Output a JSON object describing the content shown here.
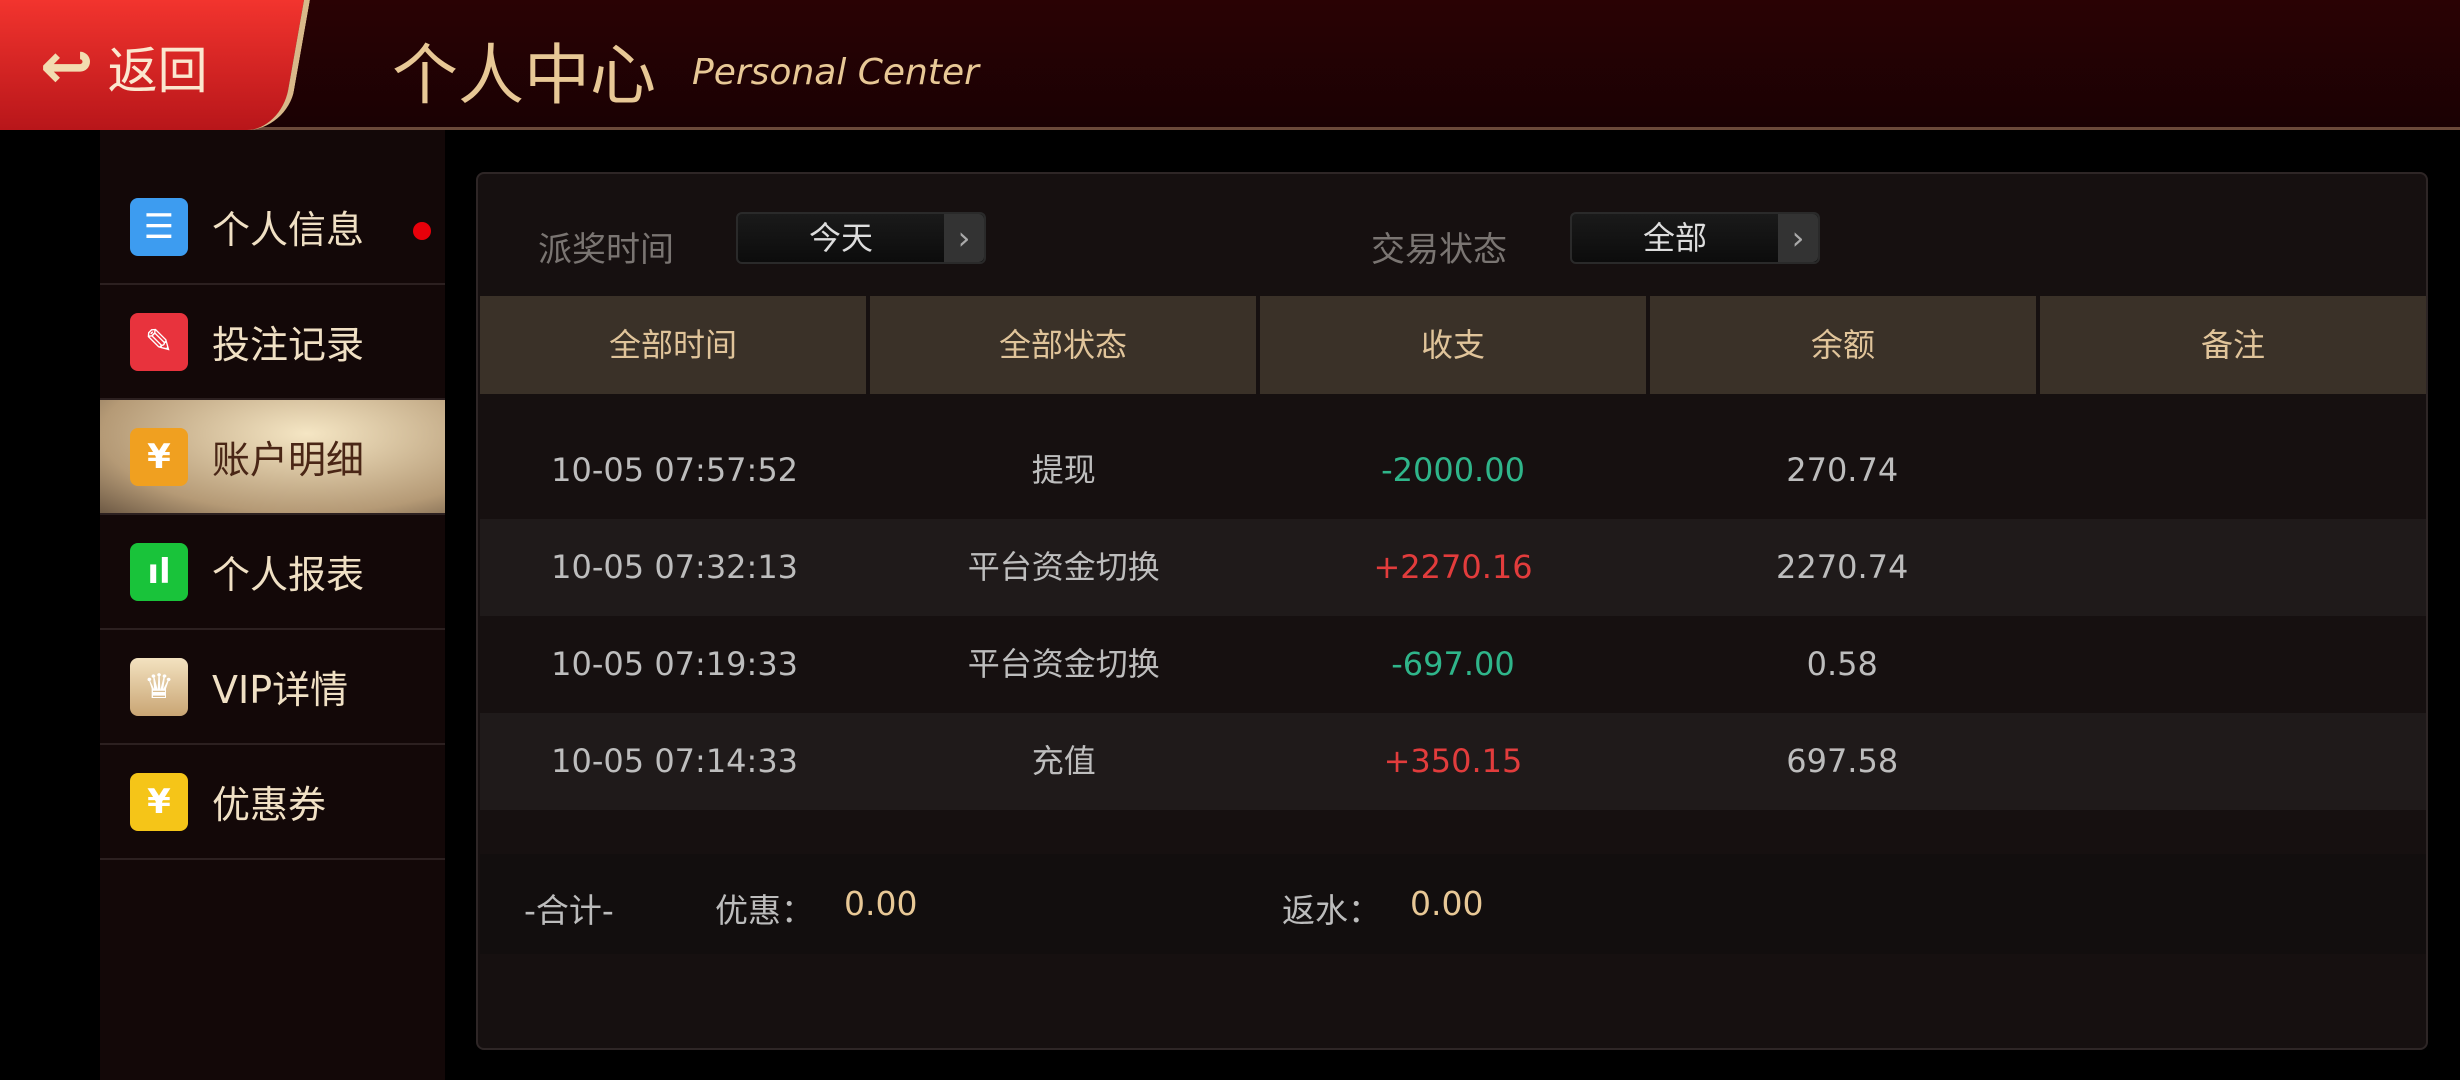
{
  "header": {
    "back_label": "返回",
    "back_icon": "return-arrow-icon",
    "title": "个人中心",
    "subtitle": "Personal Center"
  },
  "sidebar": {
    "items": [
      {
        "label": "个人信息",
        "icon": "contact-card-icon",
        "color": "#3d9cf0",
        "badge": true
      },
      {
        "label": "投注记录",
        "icon": "bet-record-icon",
        "color": "#e8333d"
      },
      {
        "label": "账户明细",
        "icon": "money-bag-icon",
        "color": "#f0a020",
        "active": true
      },
      {
        "label": "个人报表",
        "icon": "bar-chart-icon",
        "color": "#19c33a"
      },
      {
        "label": "VIP详情",
        "icon": "crown-icon",
        "color": "#d9b98a"
      },
      {
        "label": "优惠券",
        "icon": "coupon-icon",
        "color": "#f5c518"
      }
    ]
  },
  "filters": {
    "time_label": "派奖时间",
    "time_value": "今天",
    "status_label": "交易状态",
    "status_value": "全部"
  },
  "table": {
    "headers": [
      "全部时间",
      "全部状态",
      "收支",
      "余额",
      "备注"
    ],
    "rows": [
      [
        "10-05 07:57:52",
        "提现",
        "-2000.00",
        "270.74",
        ""
      ],
      [
        "10-05 07:32:13",
        "平台资金切换",
        "+2270.16",
        "2270.74",
        ""
      ],
      [
        "10-05 07:19:33",
        "平台资金切换",
        "-697.00",
        "0.58",
        ""
      ],
      [
        "10-05 07:14:33",
        "充值",
        "+350.15",
        "697.58",
        ""
      ]
    ]
  },
  "footer": {
    "total_label": "-合计-",
    "discount_label": "优惠：",
    "discount_value": "0.00",
    "rebate_label": "返水：",
    "rebate_value": "0.00"
  },
  "colors": {
    "income": "#e23c3c",
    "expense": "#2fb58a",
    "gold": "#e8c896"
  }
}
